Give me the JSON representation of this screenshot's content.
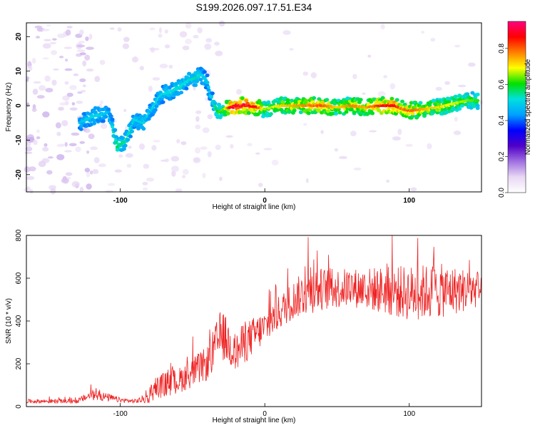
{
  "figure_title": "S199.2026.097.17.51.E34",
  "chart_data": [
    {
      "type": "heatmap",
      "name": "spectrogram",
      "xlabel": "Height of straight line (km)",
      "ylabel": "Frequency (Hz)",
      "xlim": [
        -165,
        150
      ],
      "ylim": [
        -25,
        24
      ],
      "x_ticks": [
        -100,
        0,
        100
      ],
      "x_tick_labels": [
        "-100",
        "0",
        "100"
      ],
      "y_ticks": [
        -20,
        -10,
        0,
        10,
        20
      ],
      "y_tick_labels": [
        "-20",
        "-10",
        "0",
        "10",
        "20"
      ],
      "colorbar": {
        "label": "Normalized spectral amplitude",
        "range": [
          0,
          0.95
        ],
        "ticks": [
          0,
          0.2,
          0.4,
          0.6,
          0.8
        ],
        "tick_labels": [
          "0.0",
          "0.2",
          "0.4",
          "0.6",
          "0.8"
        ],
        "colors": [
          "#ffffff",
          "#e8d8f4",
          "#a070e0",
          "#5000c8",
          "#0000ff",
          "#00a0ff",
          "#00e0e0",
          "#00e000",
          "#ffff00",
          "#ff8000",
          "#ff0000",
          "#ff0080"
        ]
      },
      "ridge": {
        "x": [
          -128,
          -118,
          -108,
          -102,
          -96,
          -90,
          -84,
          -78,
          -72,
          -66,
          -60,
          -54,
          -48,
          -44,
          -40,
          -36,
          -32,
          -28,
          -24,
          -20,
          -12,
          -5,
          0,
          10,
          20,
          30,
          40,
          50,
          60,
          70,
          80,
          90,
          95,
          100,
          110,
          120,
          130,
          140,
          148
        ],
        "y": [
          -5,
          -3,
          -2,
          -12,
          -10,
          -4,
          -5,
          -1,
          3,
          4,
          5,
          7,
          8,
          9,
          7,
          1,
          -2,
          -1,
          -0.5,
          0,
          0,
          -0.5,
          -1,
          0,
          0,
          0,
          0,
          -0.5,
          0,
          -0.5,
          0,
          0,
          -1,
          -1.5,
          -1,
          -0.5,
          0.5,
          1.5,
          1.5
        ],
        "amplitude": [
          0.25,
          0.3,
          0.25,
          0.4,
          0.35,
          0.3,
          0.3,
          0.28,
          0.3,
          0.3,
          0.32,
          0.3,
          0.35,
          0.3,
          0.25,
          0.3,
          0.45,
          0.5,
          0.85,
          0.9,
          0.88,
          0.8,
          0.5,
          0.6,
          0.65,
          0.7,
          0.75,
          0.6,
          0.7,
          0.65,
          0.8,
          0.85,
          0.7,
          0.75,
          0.65,
          0.6,
          0.55,
          0.5,
          0.45
        ]
      }
    },
    {
      "type": "line",
      "name": "snr",
      "xlabel": "Height of straight line (km)",
      "ylabel": "SNR (10 * v/v)",
      "xlim": [
        -165,
        150
      ],
      "ylim": [
        0,
        800
      ],
      "x_ticks": [
        -100,
        0,
        100
      ],
      "x_tick_labels": [
        "-100",
        "0",
        "100"
      ],
      "y_ticks": [
        0,
        200,
        400,
        600,
        800
      ],
      "y_tick_labels": [
        "0",
        "200",
        "400",
        "600",
        "800"
      ],
      "series": [
        {
          "name": "SNR",
          "color": "#ee2222",
          "envelope_x": [
            -165,
            -130,
            -120,
            -110,
            -100,
            -90,
            -80,
            -75,
            -70,
            -60,
            -50,
            -40,
            -30,
            -20,
            -15,
            -10,
            0,
            10,
            20,
            30,
            40,
            60,
            80,
            100,
            120,
            140,
            150
          ],
          "envelope_mean": [
            25,
            25,
            55,
            45,
            30,
            25,
            40,
            90,
            100,
            120,
            160,
            200,
            340,
            250,
            290,
            320,
            370,
            440,
            500,
            540,
            550,
            555,
            545,
            530,
            540,
            545,
            545
          ],
          "envelope_spread": [
            10,
            10,
            25,
            20,
            12,
            10,
            25,
            50,
            60,
            60,
            70,
            80,
            120,
            90,
            100,
            90,
            80,
            80,
            90,
            110,
            100,
            90,
            110,
            130,
            130,
            100,
            80
          ]
        }
      ]
    }
  ]
}
